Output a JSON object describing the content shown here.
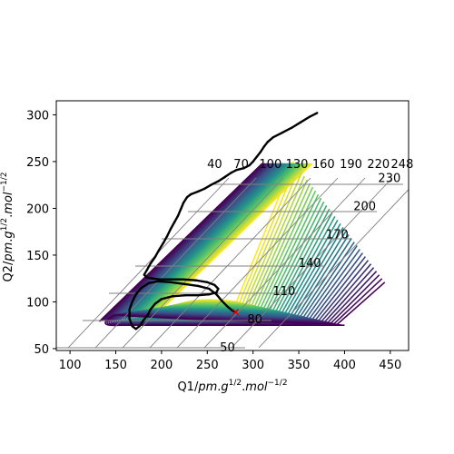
{
  "chart_data": {
    "type": "contour",
    "xlabel": "Q1/pm.g^1/2.mol^-1/2",
    "ylabel": "Q2/pm.g^1/2.mol^-1/2",
    "xlim": [
      85,
      470
    ],
    "ylim": [
      48,
      315
    ],
    "xticks": [
      100,
      150,
      200,
      250,
      300,
      350,
      400,
      450
    ],
    "yticks": [
      50,
      100,
      150,
      200,
      250,
      300
    ],
    "contour_levels": [
      40,
      50,
      70,
      80,
      100,
      110,
      130,
      140,
      160,
      170,
      190,
      200,
      220,
      230,
      248
    ],
    "labelled_levels": [
      {
        "level": "50",
        "x": 272,
        "y": 51
      },
      {
        "level": "80",
        "x": 302,
        "y": 81
      },
      {
        "level": "110",
        "x": 334,
        "y": 111
      },
      {
        "level": "140",
        "x": 362,
        "y": 141
      },
      {
        "level": "170",
        "x": 392,
        "y": 172
      },
      {
        "level": "200",
        "x": 422,
        "y": 202
      },
      {
        "level": "230",
        "x": 449,
        "y": 232
      },
      {
        "level": "40",
        "x": 258,
        "y": 247
      },
      {
        "level": "70",
        "x": 287,
        "y": 247
      },
      {
        "level": "100",
        "x": 319,
        "y": 247
      },
      {
        "level": "130",
        "x": 348,
        "y": 247
      },
      {
        "level": "160",
        "x": 377,
        "y": 247
      },
      {
        "level": "190",
        "x": 407,
        "y": 247
      },
      {
        "level": "220",
        "x": 437,
        "y": 247
      },
      {
        "level": "248",
        "x": 463,
        "y": 247
      }
    ],
    "minimum_marker": {
      "x": 281,
      "y": 89
    },
    "trajectory": [
      [
        370,
        302
      ],
      [
        362,
        298
      ],
      [
        352,
        292
      ],
      [
        342,
        286
      ],
      [
        332,
        281
      ],
      [
        322,
        276
      ],
      [
        316,
        271
      ],
      [
        312,
        266
      ],
      [
        308,
        260
      ],
      [
        304,
        255
      ],
      [
        300,
        250
      ],
      [
        296,
        246
      ],
      [
        290,
        243
      ],
      [
        282,
        241
      ],
      [
        276,
        238
      ],
      [
        270,
        234
      ],
      [
        262,
        229
      ],
      [
        254,
        225
      ],
      [
        247,
        221
      ],
      [
        240,
        218
      ],
      [
        232,
        215
      ],
      [
        228,
        212
      ],
      [
        224,
        206
      ],
      [
        221,
        199
      ],
      [
        218,
        192
      ],
      [
        214,
        185
      ],
      [
        210,
        178
      ],
      [
        206,
        170
      ],
      [
        202,
        163
      ],
      [
        197,
        155
      ],
      [
        193,
        148
      ],
      [
        188,
        141
      ],
      [
        184,
        134
      ],
      [
        181,
        129
      ],
      [
        184,
        126
      ],
      [
        190,
        125
      ],
      [
        198,
        124
      ],
      [
        210,
        124
      ],
      [
        224,
        124
      ],
      [
        238,
        123
      ],
      [
        250,
        121
      ],
      [
        258,
        118
      ],
      [
        262,
        114
      ],
      [
        260,
        110
      ],
      [
        252,
        108
      ],
      [
        240,
        107
      ],
      [
        226,
        107
      ],
      [
        212,
        106
      ],
      [
        200,
        103
      ],
      [
        193,
        98
      ],
      [
        188,
        92
      ],
      [
        185,
        86
      ],
      [
        180,
        80
      ],
      [
        176,
        74
      ],
      [
        172,
        71
      ],
      [
        168,
        74
      ],
      [
        165,
        82
      ],
      [
        165,
        92
      ],
      [
        168,
        100
      ],
      [
        172,
        108
      ],
      [
        178,
        115
      ],
      [
        186,
        120
      ],
      [
        196,
        122
      ],
      [
        210,
        121
      ],
      [
        225,
        119
      ],
      [
        240,
        117
      ],
      [
        252,
        114
      ],
      [
        260,
        108
      ],
      [
        266,
        101
      ],
      [
        272,
        95
      ],
      [
        277,
        91
      ],
      [
        281,
        89
      ]
    ]
  }
}
